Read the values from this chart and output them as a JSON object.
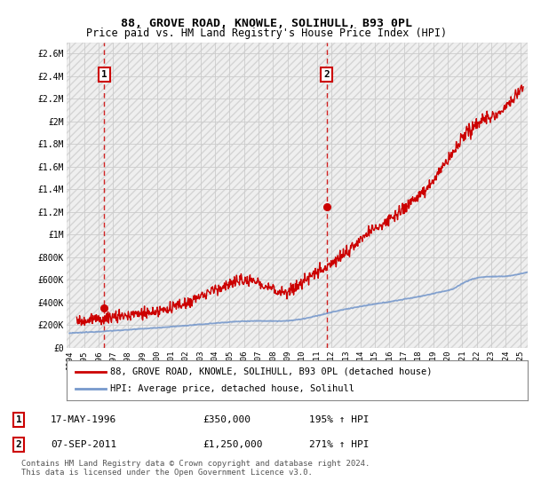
{
  "title1": "88, GROVE ROAD, KNOWLE, SOLIHULL, B93 0PL",
  "title2": "Price paid vs. HM Land Registry's House Price Index (HPI)",
  "hpi_color": "#7799cc",
  "price_color": "#cc0000",
  "marker_color": "#cc0000",
  "grid_color": "#cccccc",
  "hatch_color": "#e0e0e0",
  "legend_entry1": "88, GROVE ROAD, KNOWLE, SOLIHULL, B93 0PL (detached house)",
  "legend_entry2": "HPI: Average price, detached house, Solihull",
  "annotation1_label": "1",
  "annotation1_date": "17-MAY-1996",
  "annotation1_price": "£350,000",
  "annotation1_hpi": "195% ↑ HPI",
  "annotation2_label": "2",
  "annotation2_date": "07-SEP-2011",
  "annotation2_price": "£1,250,000",
  "annotation2_hpi": "271% ↑ HPI",
  "footer": "Contains HM Land Registry data © Crown copyright and database right 2024.\nThis data is licensed under the Open Government Licence v3.0.",
  "ylim_max": 2700000,
  "yticks": [
    0,
    200000,
    400000,
    600000,
    800000,
    1000000,
    1200000,
    1400000,
    1600000,
    1800000,
    2000000,
    2200000,
    2400000,
    2600000
  ],
  "ytick_labels": [
    "£0",
    "£200K",
    "£400K",
    "£600K",
    "£800K",
    "£1M",
    "£1.2M",
    "£1.4M",
    "£1.6M",
    "£1.8M",
    "£2M",
    "£2.2M",
    "£2.4M",
    "£2.6M"
  ],
  "point1_x": 1996.38,
  "point1_y": 350000,
  "point2_x": 2011.68,
  "point2_y": 1250000,
  "xmin": 1993.8,
  "xmax": 2025.5
}
